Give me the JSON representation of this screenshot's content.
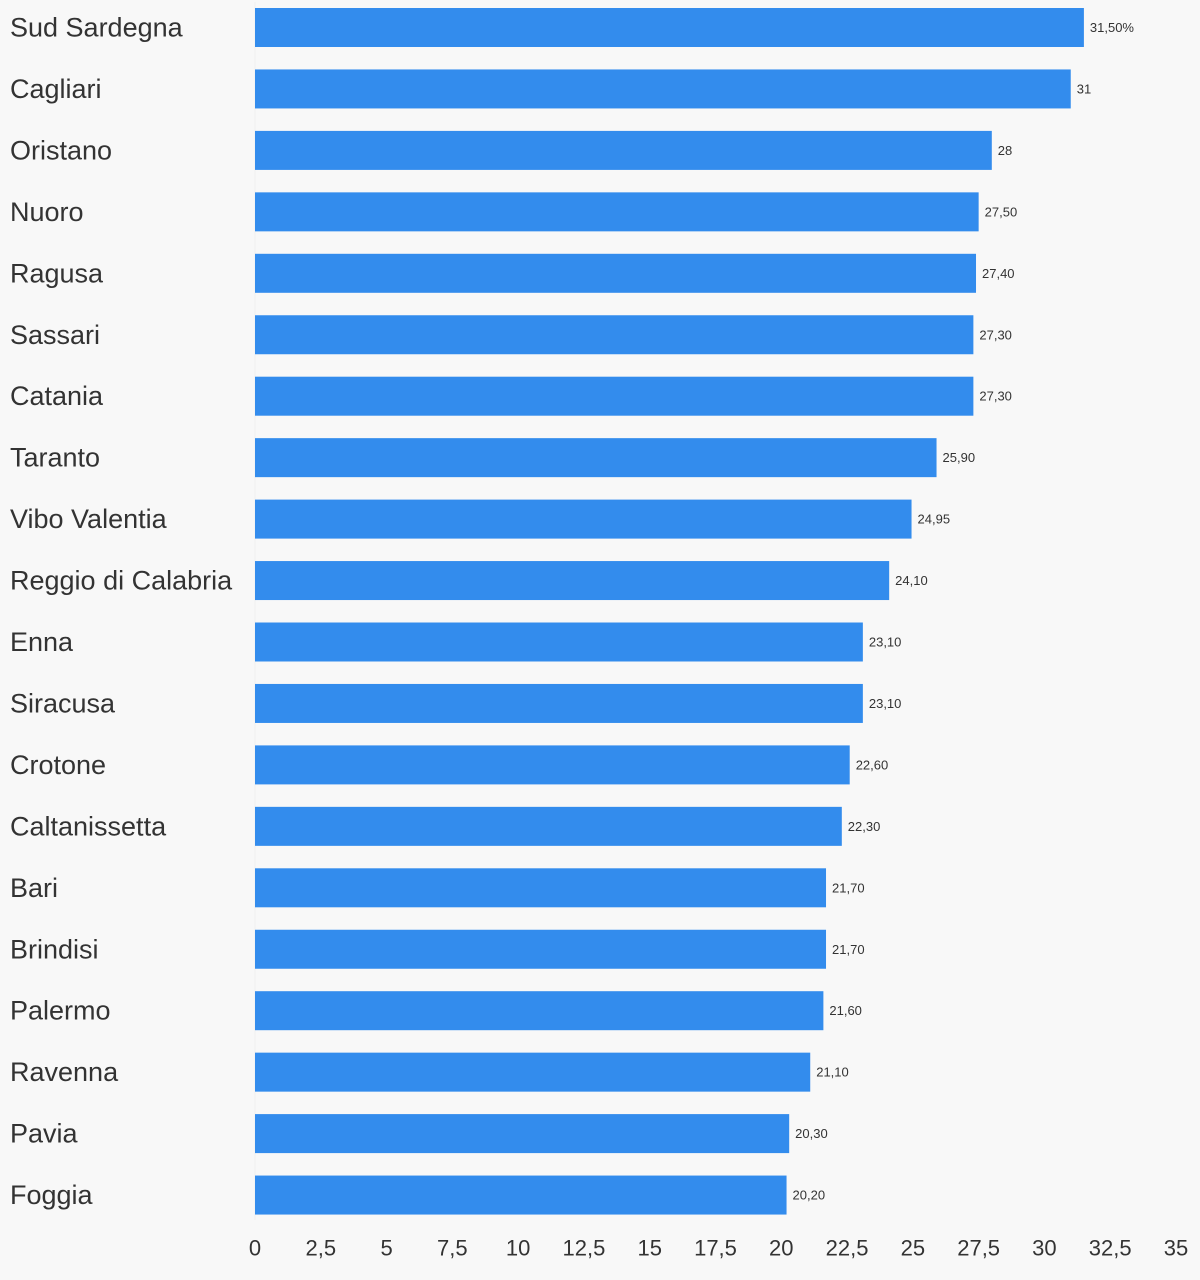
{
  "chart_data": {
    "type": "bar",
    "orientation": "horizontal",
    "categories": [
      "Sud Sardegna",
      "Cagliari",
      "Oristano",
      "Nuoro",
      "Ragusa",
      "Sassari",
      "Catania",
      "Taranto",
      "Vibo Valentia",
      "Reggio di Calabria",
      "Enna",
      "Siracusa",
      "Crotone",
      "Caltanissetta",
      "Bari",
      "Brindisi",
      "Palermo",
      "Ravenna",
      "Pavia",
      "Foggia"
    ],
    "values": [
      31.5,
      31,
      28,
      27.5,
      27.4,
      27.3,
      27.3,
      25.9,
      24.95,
      24.1,
      23.1,
      23.1,
      22.6,
      22.3,
      21.7,
      21.7,
      21.6,
      21.1,
      20.3,
      20.2
    ],
    "value_labels": [
      "31,50%",
      "31",
      "28",
      "27,50",
      "27,40",
      "27,30",
      "27,30",
      "25,90",
      "24,95",
      "24,10",
      "23,10",
      "23,10",
      "22,60",
      "22,30",
      "21,70",
      "21,70",
      "21,60",
      "21,10",
      "20,30",
      "20,20"
    ],
    "x_ticks": [
      "0",
      "2,5",
      "5",
      "7,5",
      "10",
      "12,5",
      "15",
      "17,5",
      "20",
      "22,5",
      "25",
      "27,5",
      "30",
      "32,5",
      "35"
    ],
    "xlim": [
      0,
      35
    ],
    "grid": false,
    "bar_color": "#338ced",
    "title": "",
    "xlabel": "",
    "ylabel": ""
  }
}
